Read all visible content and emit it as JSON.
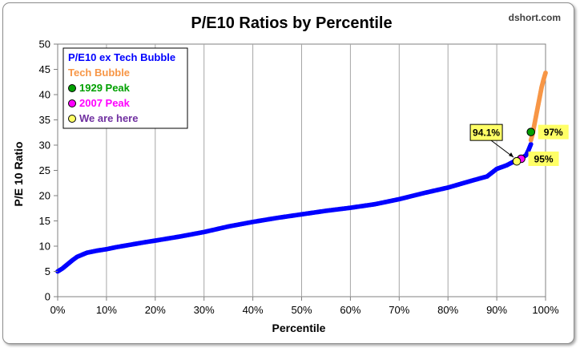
{
  "chart_data": {
    "type": "scatter",
    "title": "P/E10 Ratios by Percentile",
    "source": "dshort.com",
    "xlabel": "Percentile",
    "ylabel": "P/E 10 Ratio",
    "xlim": [
      0,
      100
    ],
    "ylim": [
      0,
      50
    ],
    "x_ticks": [
      "0%",
      "10%",
      "20%",
      "30%",
      "40%",
      "50%",
      "60%",
      "70%",
      "80%",
      "90%",
      "100%"
    ],
    "y_ticks": [
      "0",
      "5",
      "10",
      "15",
      "20",
      "25",
      "30",
      "35",
      "40",
      "45",
      "50"
    ],
    "grid": "vertical",
    "legend_position": "top-left",
    "series": [
      {
        "name": "P/E10 ex Tech Bubble",
        "color": "#0000ff",
        "marker": "dot",
        "points": [
          [
            0,
            5.0
          ],
          [
            1,
            5.6
          ],
          [
            2,
            6.4
          ],
          [
            3,
            7.2
          ],
          [
            4,
            7.9
          ],
          [
            5,
            8.3
          ],
          [
            6,
            8.7
          ],
          [
            8,
            9.1
          ],
          [
            10,
            9.4
          ],
          [
            12,
            9.8
          ],
          [
            15,
            10.3
          ],
          [
            18,
            10.8
          ],
          [
            20,
            11.1
          ],
          [
            25,
            11.9
          ],
          [
            30,
            12.8
          ],
          [
            35,
            13.9
          ],
          [
            40,
            14.8
          ],
          [
            45,
            15.6
          ],
          [
            50,
            16.3
          ],
          [
            55,
            17.0
          ],
          [
            60,
            17.6
          ],
          [
            65,
            18.3
          ],
          [
            70,
            19.3
          ],
          [
            75,
            20.5
          ],
          [
            80,
            21.6
          ],
          [
            85,
            23.0
          ],
          [
            88,
            23.8
          ],
          [
            90,
            25.3
          ],
          [
            92,
            26.0
          ],
          [
            93,
            26.5
          ],
          [
            94,
            27.0
          ],
          [
            95,
            27.4
          ],
          [
            96,
            28.0
          ],
          [
            96.5,
            29.0
          ],
          [
            97,
            30.2
          ]
        ]
      },
      {
        "name": "Tech Bubble",
        "color": "#f79646",
        "marker": "dot",
        "points": [
          [
            97,
            31.0
          ],
          [
            97.3,
            32.0
          ],
          [
            97.6,
            33.5
          ],
          [
            98,
            35.5
          ],
          [
            98.4,
            37.5
          ],
          [
            98.8,
            39.5
          ],
          [
            99.2,
            41.5
          ],
          [
            99.6,
            43.0
          ],
          [
            100,
            44.3
          ]
        ]
      },
      {
        "name": "1929 Peak",
        "color": "#00a000",
        "marker": "circle",
        "points": [
          [
            97,
            32.6
          ]
        ],
        "label": "97%"
      },
      {
        "name": "2007 Peak",
        "color": "#ff00ff",
        "marker": "circle",
        "points": [
          [
            95,
            27.3
          ]
        ],
        "label": "95%"
      },
      {
        "name": "We are here",
        "color": "#ffff66",
        "marker": "circle",
        "points": [
          [
            94.1,
            26.8
          ]
        ],
        "label": "94.1%"
      }
    ],
    "legend_text_colors": [
      "#0000ff",
      "#f79646",
      "#00a000",
      "#ff00ff",
      "#7030a0"
    ],
    "label_box_color": "#ffff66"
  }
}
